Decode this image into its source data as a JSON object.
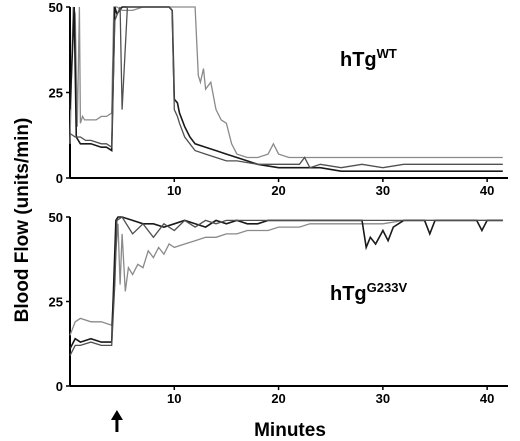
{
  "chart_data": [
    {
      "type": "line",
      "panel_label": "hTg",
      "panel_label_superscript": "WT",
      "xlim": [
        0,
        42
      ],
      "ylim": [
        0,
        50
      ],
      "x_ticks": [
        "10",
        "20",
        "30",
        "40"
      ],
      "y_ticks": [
        "0",
        "25",
        "50"
      ],
      "grid": false,
      "series": [
        {
          "color": "#8a8a8a",
          "x": [
            0,
            0.3,
            0.5,
            0.7,
            0.9,
            1.0,
            1.2,
            1.4,
            2,
            2.5,
            3,
            3.5,
            4.0,
            4.2,
            4.5,
            5,
            6,
            7,
            8,
            9,
            10,
            11,
            11.5,
            12,
            12.3,
            12.5,
            12.8,
            13,
            13.5,
            14,
            14.5,
            15,
            15.5,
            16,
            17,
            18,
            19,
            19.5,
            20,
            21,
            22,
            24,
            26,
            28,
            30,
            32,
            34,
            36,
            38,
            40,
            41.5
          ],
          "y": [
            10,
            50,
            48,
            15,
            50,
            16,
            18,
            17,
            17,
            17,
            18,
            18,
            19,
            50,
            50,
            49,
            49,
            50,
            50,
            50,
            50,
            50,
            50,
            50,
            30,
            28,
            32,
            26,
            28,
            20,
            17,
            16,
            10,
            7,
            6,
            6,
            7,
            10,
            7,
            6,
            6,
            6,
            6,
            6,
            6,
            6,
            6,
            6,
            6,
            6,
            6
          ]
        },
        {
          "color": "#1a1a1a",
          "x": [
            0,
            0.4,
            0.6,
            0.8,
            1.0,
            2,
            3,
            3.5,
            4.0,
            4.3,
            4.5,
            5,
            5.5,
            6,
            7,
            8,
            9,
            9.5,
            9.8,
            10.0,
            10.3,
            10.5,
            11,
            11.5,
            12,
            13,
            14,
            15,
            16,
            17,
            18,
            20,
            22,
            24,
            26,
            28,
            30,
            32,
            34,
            36,
            38,
            40,
            41.5
          ],
          "y": [
            20,
            50,
            12,
            11,
            10,
            10,
            9,
            9,
            8,
            50,
            48,
            50,
            50,
            50,
            50,
            50,
            50,
            50,
            49,
            23,
            22,
            19,
            15,
            12,
            10,
            9,
            8,
            7,
            6,
            5,
            4,
            3,
            3,
            3,
            2,
            2,
            2,
            2,
            2,
            2,
            2,
            2,
            2
          ]
        },
        {
          "color": "#505050",
          "x": [
            0,
            0.5,
            1,
            1.5,
            2,
            3,
            3.5,
            4.0,
            4.3,
            4.8,
            5,
            5.5,
            6,
            7,
            8,
            9,
            9.5,
            9.8,
            10.0,
            10.3,
            10.5,
            11,
            11.5,
            12,
            13,
            14,
            15,
            16,
            18,
            20,
            21,
            22,
            22.5,
            23,
            24,
            26,
            28,
            30,
            32,
            34,
            36,
            38,
            40,
            41.5
          ],
          "y": [
            13,
            12,
            12,
            11,
            11,
            10,
            10,
            9,
            46,
            50,
            20,
            50,
            50,
            50,
            50,
            50,
            50,
            49,
            20,
            18,
            16,
            12,
            10,
            8,
            7,
            6,
            5,
            5,
            4,
            4,
            4,
            4,
            6,
            3,
            4,
            3,
            4,
            3,
            4,
            4,
            4,
            4,
            4,
            4
          ]
        }
      ]
    },
    {
      "type": "line",
      "panel_label": "hTg",
      "panel_label_superscript": "G233V",
      "xlim": [
        0,
        42
      ],
      "ylim": [
        0,
        50
      ],
      "x_ticks": [
        "10",
        "20",
        "30",
        "40"
      ],
      "y_ticks": [
        "0",
        "25",
        "50"
      ],
      "grid": false,
      "annotation": "arrow marking time 4.5 min",
      "arrow_x": 4.5,
      "series": [
        {
          "color": "#8a8a8a",
          "x": [
            0,
            0.5,
            1,
            2,
            3,
            4,
            4.4,
            4.6,
            4.8,
            5,
            5.3,
            5.6,
            6,
            6.5,
            7,
            7.5,
            8,
            8.5,
            9,
            9.5,
            10,
            11,
            12,
            13,
            14,
            15,
            16,
            17,
            18,
            19,
            20,
            21,
            22,
            23,
            24,
            25,
            26,
            27,
            28,
            29,
            30,
            32,
            34,
            36,
            38,
            40,
            41.5
          ],
          "y": [
            15,
            19,
            20,
            19,
            19,
            18,
            40,
            48,
            30,
            45,
            28,
            35,
            33,
            36,
            35,
            40,
            38,
            41,
            39,
            42,
            41,
            42,
            43,
            44,
            44,
            45,
            45,
            46,
            46,
            46,
            47,
            47,
            47,
            48,
            48,
            48,
            48,
            48,
            48,
            48,
            48,
            49,
            49,
            49,
            49,
            49,
            49
          ]
        },
        {
          "color": "#1a1a1a",
          "x": [
            0,
            0.5,
            1,
            2,
            3,
            4,
            4.4,
            4.6,
            5,
            6,
            7,
            8,
            9,
            10,
            11,
            12,
            13,
            14,
            15,
            16,
            17,
            18,
            19,
            20,
            22,
            24,
            26,
            28,
            28.4,
            28.8,
            29.3,
            30,
            30.5,
            31,
            32,
            33,
            34,
            34.5,
            35,
            36,
            38,
            39,
            39.5,
            40,
            41.5
          ],
          "y": [
            11,
            14,
            13,
            14,
            13,
            13,
            49,
            50,
            50,
            49,
            48,
            48,
            47,
            48,
            49,
            48,
            47,
            49,
            48,
            49,
            48,
            48,
            49,
            49,
            49,
            49,
            49,
            49,
            41,
            44,
            42,
            46,
            43,
            47,
            49,
            49,
            49,
            45,
            49,
            49,
            49,
            49,
            46,
            49,
            49
          ]
        },
        {
          "color": "#505050",
          "x": [
            0,
            0.5,
            1,
            2,
            3,
            4,
            4.3,
            4.5,
            5,
            6,
            7,
            8,
            9,
            10,
            11,
            12,
            13,
            14,
            15,
            16,
            18,
            20,
            22,
            24,
            26,
            28,
            30,
            32,
            34,
            36,
            38,
            40,
            41.5
          ],
          "y": [
            9,
            12,
            12,
            13,
            12,
            12,
            30,
            49,
            50,
            45,
            48,
            44,
            48,
            46,
            49,
            47,
            49,
            48,
            49,
            49,
            49,
            49,
            49,
            49,
            49,
            49,
            49,
            49,
            49,
            49,
            49,
            49,
            49
          ]
        }
      ]
    }
  ],
  "labels": {
    "y_axis": "Blood Flow  (units/min)",
    "x_axis": "Minutes"
  }
}
